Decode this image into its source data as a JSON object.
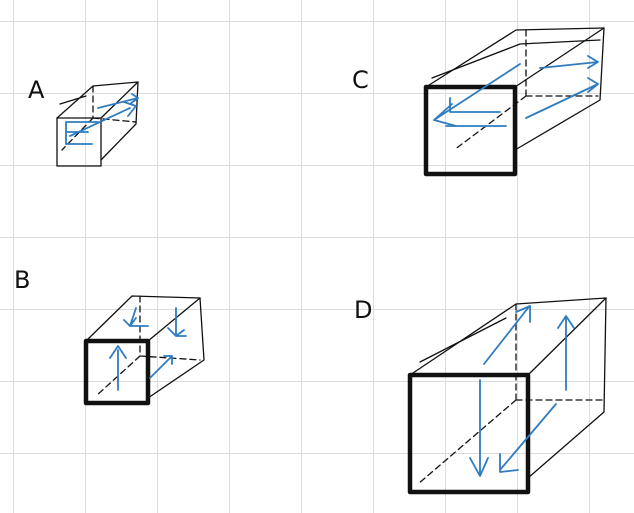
{
  "colors": {
    "ink": "#111111",
    "flow": "#2f7cc0",
    "grid": "#dcdcdc",
    "background": "#ffffff"
  },
  "labels": {
    "a": "A",
    "b": "B",
    "c": "C",
    "d": "D"
  }
}
